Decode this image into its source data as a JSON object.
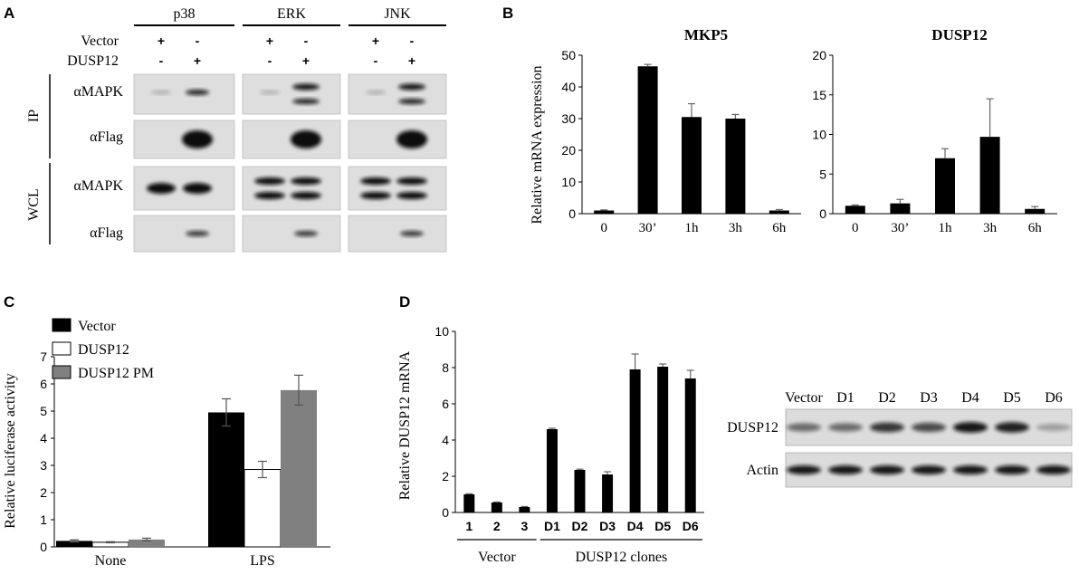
{
  "panels": {
    "A": {
      "letter": "A",
      "groups": [
        {
          "name": "p38",
          "mapk_ip_bands": 1
        },
        {
          "name": "ERK",
          "mapk_ip_bands": 2
        },
        {
          "name": "JNK",
          "mapk_ip_bands": 2
        }
      ],
      "rows": [
        {
          "label": "Vector",
          "signs": [
            "+",
            "-"
          ]
        },
        {
          "label": "DUSP12",
          "signs": [
            "-",
            "+"
          ]
        }
      ],
      "ip_label": "IP",
      "wcl_label": "WCL",
      "blot_labels": [
        "αMAPK",
        "αFlag",
        "αMAPK",
        "αFlag"
      ]
    },
    "B": {
      "letter": "B"
    },
    "C": {
      "letter": "C"
    },
    "D": {
      "letter": "D",
      "blot_header": [
        "Vector",
        "D1",
        "D2",
        "D3",
        "D4",
        "D5",
        "D6"
      ],
      "blot_rows": [
        "DUSP12",
        "Actin"
      ],
      "dusp12_band_intensity": [
        0.55,
        0.55,
        0.8,
        0.7,
        0.95,
        0.9,
        0.3
      ]
    }
  },
  "chart_data": [
    {
      "id": "B-MKP5",
      "type": "bar",
      "title": "MKP5",
      "ylabel": "Relative mRNA expression",
      "categories": [
        "0",
        "30’",
        "1h",
        "3h",
        "6h"
      ],
      "values": [
        1,
        46.5,
        30.5,
        30,
        1
      ],
      "errors": [
        0.2,
        0.6,
        4.2,
        1.3,
        0.3
      ],
      "ylim": [
        0,
        50
      ],
      "yticks": [
        0,
        10,
        20,
        30,
        40,
        50
      ],
      "bar_color": "#000000"
    },
    {
      "id": "B-DUSP12",
      "type": "bar",
      "title": "DUSP12",
      "ylabel": "",
      "categories": [
        "0",
        "30’",
        "1h",
        "3h",
        "6h"
      ],
      "values": [
        1,
        1.3,
        7,
        9.7,
        0.6
      ],
      "errors": [
        0.1,
        0.5,
        1.2,
        4.8,
        0.3
      ],
      "ylim": [
        0,
        20
      ],
      "yticks": [
        0,
        5,
        10,
        15,
        20
      ],
      "bar_color": "#000000"
    },
    {
      "id": "C",
      "type": "bar",
      "ylabel": "Relative luciferase activity",
      "categories": [
        "None",
        "LPS"
      ],
      "series": [
        {
          "name": "Vector",
          "values": [
            0.22,
            4.95
          ],
          "errors": [
            0.04,
            0.5
          ],
          "color": "#000000"
        },
        {
          "name": "DUSP12",
          "values": [
            0.17,
            2.85
          ],
          "errors": [
            0.02,
            0.3
          ],
          "color": "#ffffff"
        },
        {
          "name": "DUSP12 PM",
          "values": [
            0.27,
            5.77
          ],
          "errors": [
            0.05,
            0.55
          ],
          "color": "#808080"
        }
      ],
      "ylim": [
        0,
        7
      ],
      "yticks": [
        0,
        1,
        2,
        3,
        4,
        5,
        6,
        7
      ],
      "legend": "top-left"
    },
    {
      "id": "D",
      "type": "bar",
      "ylabel": "Relative DUSP12 mRNA",
      "categories": [
        "1",
        "2",
        "3",
        "D1",
        "D2",
        "D3",
        "D4",
        "D5",
        "D6"
      ],
      "values": [
        1.0,
        0.55,
        0.3,
        4.6,
        2.35,
        2.1,
        7.9,
        8.05,
        7.4
      ],
      "errors": [
        0.03,
        0.03,
        0.03,
        0.05,
        0.04,
        0.15,
        0.85,
        0.15,
        0.45
      ],
      "groups": [
        {
          "label": "Vector",
          "from": 0,
          "to": 2
        },
        {
          "label": "DUSP12 clones",
          "from": 3,
          "to": 8
        }
      ],
      "ylim": [
        0,
        10
      ],
      "yticks": [
        0,
        2,
        4,
        6,
        8,
        10
      ],
      "bar_color": "#000000"
    }
  ]
}
